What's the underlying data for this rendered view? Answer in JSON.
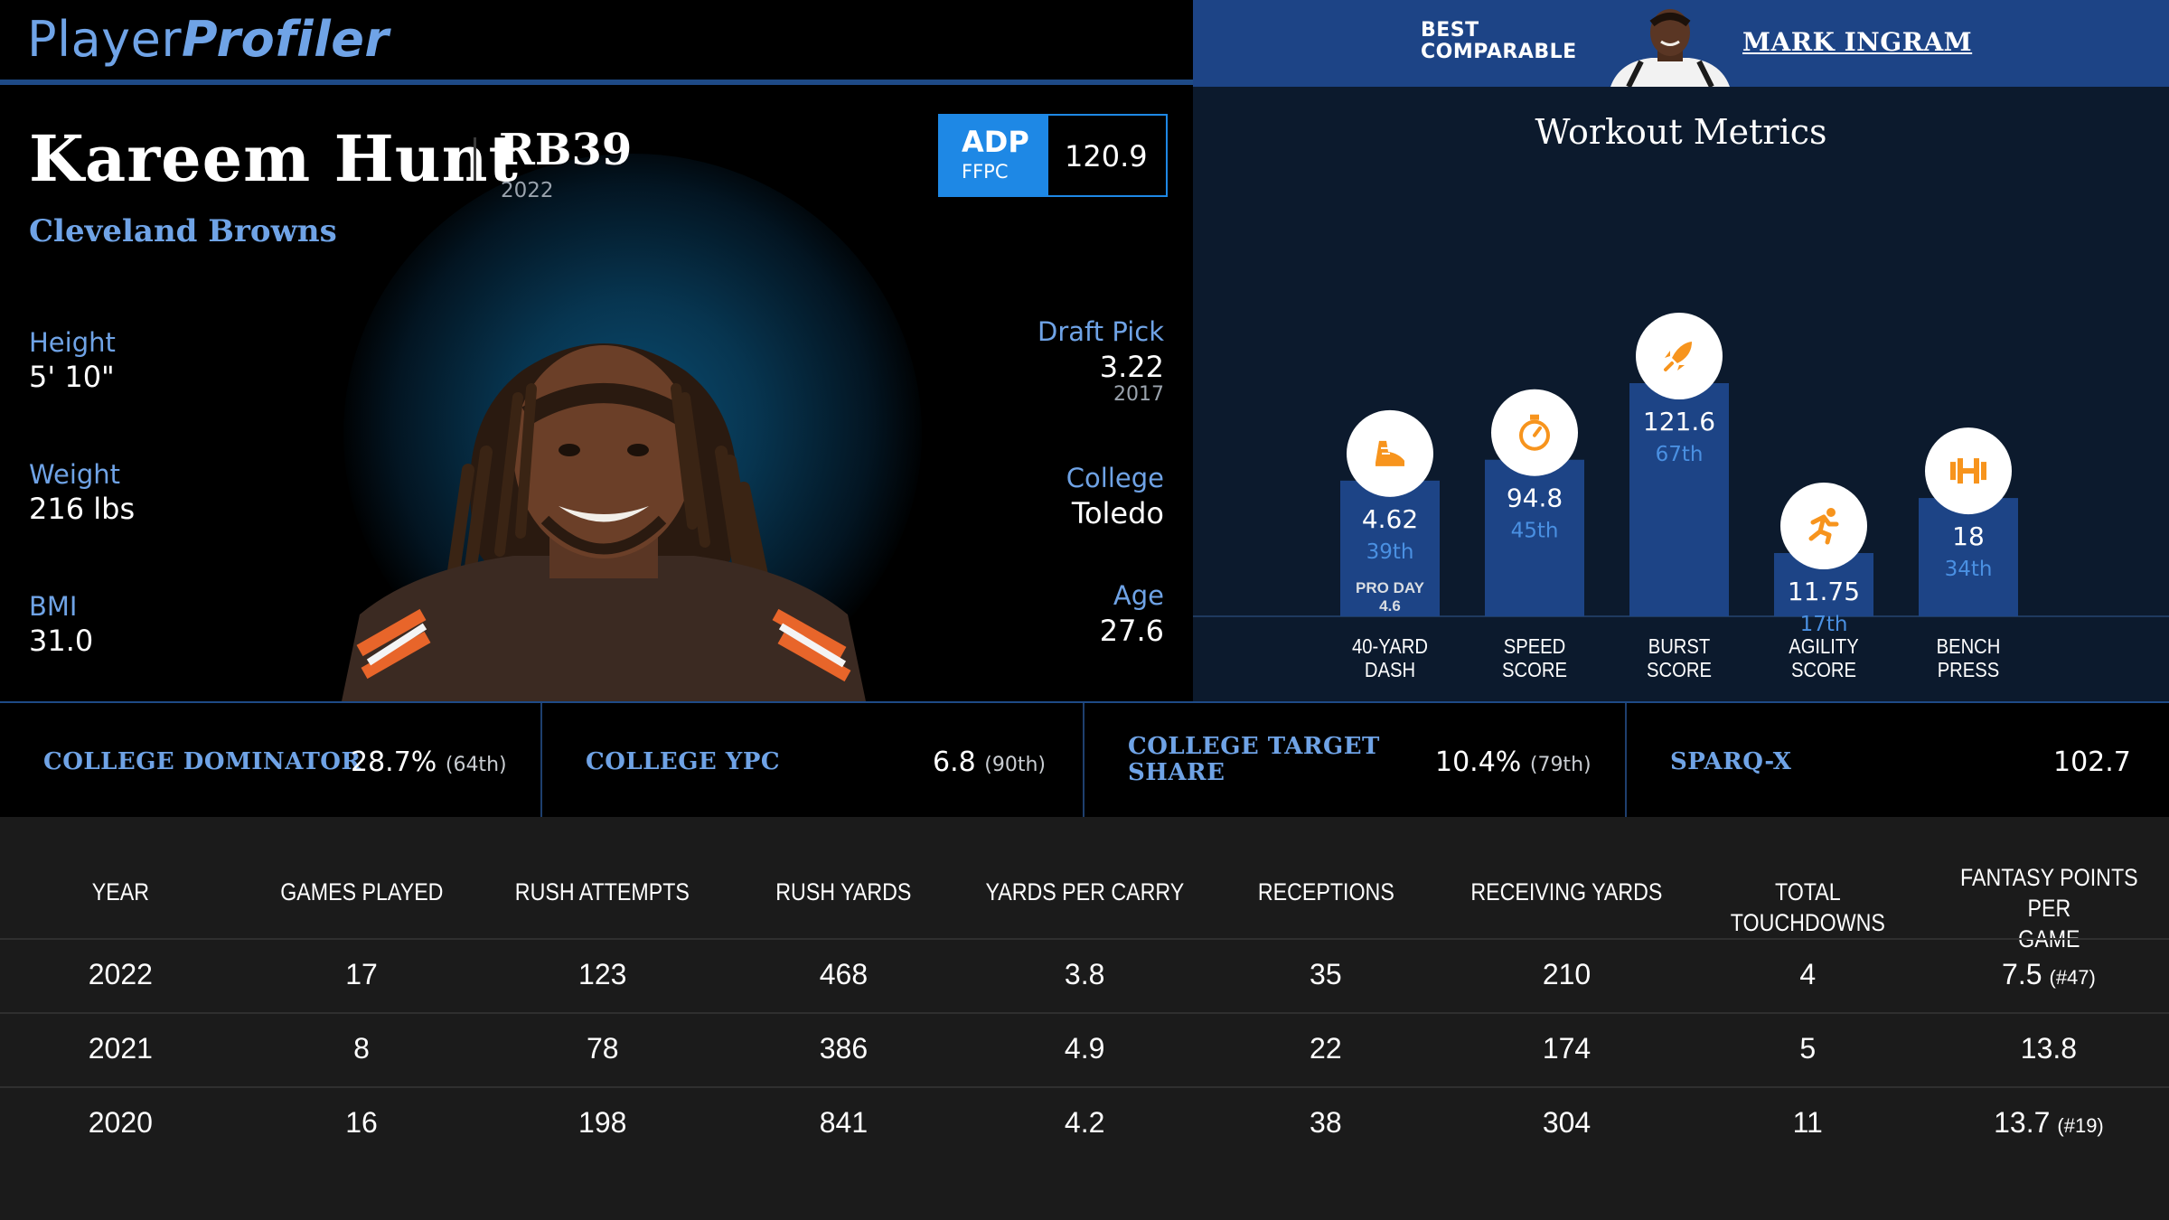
{
  "brand": {
    "logo_light": "Player",
    "logo_bold": "Profiler"
  },
  "player": {
    "name": "Kareem Hunt",
    "position_rank": "RB39",
    "position_year": "2022",
    "team": "Cleveland Browns",
    "adp": {
      "label": "ADP",
      "source": "FFPC",
      "value": "120.9"
    },
    "height": {
      "label": "Height",
      "value": "5' 10\""
    },
    "weight": {
      "label": "Weight",
      "value": "216 lbs"
    },
    "bmi": {
      "label": "BMI",
      "value": "31.0"
    },
    "draft_pick": {
      "label": "Draft Pick",
      "value": "3.22",
      "year": "2017"
    },
    "college": {
      "label": "College",
      "value": "Toledo"
    },
    "age": {
      "label": "Age",
      "value": "27.6"
    }
  },
  "comparable": {
    "label_line1": "BEST",
    "label_line2": "COMPARABLE",
    "name": "MARK INGRAM"
  },
  "workout": {
    "title": "Workout Metrics",
    "metrics": [
      {
        "id": "40-yard-dash",
        "icon": "shoe-icon",
        "label1": "40-YARD",
        "label2": "DASH",
        "value": "4.62",
        "percentile": "39th",
        "pct": 39,
        "note1": "PRO DAY",
        "note2": "4.6"
      },
      {
        "id": "speed-score",
        "icon": "stopwatch-icon",
        "label1": "SPEED",
        "label2": "SCORE",
        "value": "94.8",
        "percentile": "45th",
        "pct": 45,
        "note1": "",
        "note2": ""
      },
      {
        "id": "burst-score",
        "icon": "rocket-icon",
        "label1": "BURST",
        "label2": "SCORE",
        "value": "121.6",
        "percentile": "67th",
        "pct": 67,
        "note1": "",
        "note2": ""
      },
      {
        "id": "agility-score",
        "icon": "runner-icon",
        "label1": "AGILITY",
        "label2": "SCORE",
        "value": "11.75",
        "percentile": "17th",
        "pct": 17,
        "note1": "",
        "note2": ""
      },
      {
        "id": "bench-press",
        "icon": "barbell-icon",
        "label1": "BENCH",
        "label2": "PRESS",
        "value": "18",
        "percentile": "34th",
        "pct": 34,
        "note1": "",
        "note2": ""
      }
    ]
  },
  "college_metrics": [
    {
      "label1": "COLLEGE DOMINATOR",
      "label2": "",
      "value": "28.7%",
      "percentile": "(64th)"
    },
    {
      "label1": "COLLEGE YPC",
      "label2": "",
      "value": "6.8",
      "percentile": "(90th)"
    },
    {
      "label1": "COLLEGE TARGET",
      "label2": "SHARE",
      "value": "10.4%",
      "percentile": "(79th)"
    },
    {
      "label1": "SPARQ-X",
      "label2": "",
      "value": "102.7",
      "percentile": ""
    }
  ],
  "season_table": {
    "headers": [
      {
        "l1": "YEAR",
        "l2": ""
      },
      {
        "l1": "GAMES PLAYED",
        "l2": ""
      },
      {
        "l1": "RUSH ATTEMPTS",
        "l2": ""
      },
      {
        "l1": "RUSH YARDS",
        "l2": ""
      },
      {
        "l1": "YARDS PER CARRY",
        "l2": ""
      },
      {
        "l1": "RECEPTIONS",
        "l2": ""
      },
      {
        "l1": "RECEIVING YARDS",
        "l2": ""
      },
      {
        "l1": "TOTAL TOUCHDOWNS",
        "l2": ""
      },
      {
        "l1": "FANTASY POINTS PER",
        "l2": "GAME"
      }
    ],
    "rows": [
      {
        "cells": [
          "2022",
          "17",
          "123",
          "468",
          "3.8",
          "35",
          "210",
          "4",
          "7.5"
        ],
        "rank": "(#47)"
      },
      {
        "cells": [
          "2021",
          "8",
          "78",
          "386",
          "4.9",
          "22",
          "174",
          "5",
          "13.8"
        ],
        "rank": ""
      },
      {
        "cells": [
          "2020",
          "16",
          "198",
          "841",
          "4.2",
          "38",
          "304",
          "11",
          "13.7"
        ],
        "rank": "(#19)"
      }
    ]
  },
  "colors": {
    "accent_blue": "#6fa3e6",
    "adp_blue": "#1e88e5",
    "bar_blue": "#1d4486",
    "icon_orange": "#f7941d"
  }
}
